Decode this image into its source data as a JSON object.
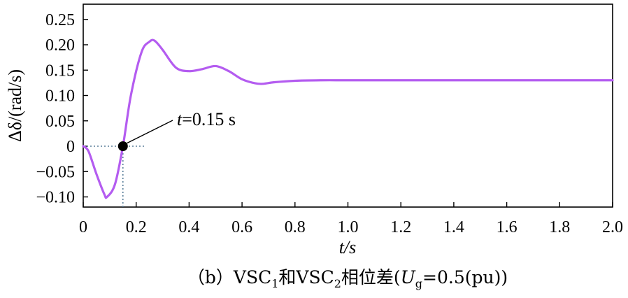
{
  "chart_data": {
    "type": "line",
    "xlabel": "t/s",
    "ylabel": "Δδ/(rad/s)",
    "xlim": [
      0,
      2.0
    ],
    "ylim": [
      -0.12,
      0.28
    ],
    "xticks": [
      0,
      0.2,
      0.4,
      0.6,
      0.8,
      1.0,
      1.2,
      1.4,
      1.6,
      1.8,
      2.0
    ],
    "xtick_labels": [
      "0",
      "0.2",
      "0.4",
      "0.6",
      "0.8",
      "1.0",
      "1.2",
      "1.4",
      "1.6",
      "1.8",
      "2.0"
    ],
    "yticks": [
      -0.1,
      -0.05,
      0,
      0.05,
      0.1,
      0.15,
      0.2,
      0.25
    ],
    "ytick_labels": [
      "−0.10",
      "−0.05",
      "0",
      "0.05",
      "0.10",
      "0.15",
      "0.20",
      "0.25"
    ],
    "grid": false,
    "series": [
      {
        "color": "#b45cf0",
        "x": [
          0,
          0.02,
          0.05,
          0.08,
          0.09,
          0.12,
          0.15,
          0.18,
          0.22,
          0.25,
          0.27,
          0.3,
          0.35,
          0.4,
          0.45,
          0.5,
          0.55,
          0.6,
          0.65,
          0.68,
          0.72,
          0.8,
          0.9,
          1.0,
          1.2,
          1.5,
          2.0
        ],
        "y": [
          0,
          -0.01,
          -0.055,
          -0.095,
          -0.1,
          -0.075,
          0.0,
          0.1,
          0.185,
          0.206,
          0.208,
          0.19,
          0.155,
          0.148,
          0.152,
          0.158,
          0.148,
          0.132,
          0.124,
          0.123,
          0.126,
          0.129,
          0.13,
          0.13,
          0.13,
          0.13,
          0.13
        ]
      }
    ],
    "annotation": {
      "point": {
        "x": 0.15,
        "y": 0
      },
      "text_italic": "t",
      "text_rest": "=0.15 s"
    }
  },
  "caption": {
    "prefix": "（b）VSC",
    "sub1": "1",
    "mid": "和VSC",
    "sub2": "2",
    "text": "相位差(",
    "u": "U",
    "ug_sub": "g",
    "suffix": "=0.5(pu))"
  }
}
